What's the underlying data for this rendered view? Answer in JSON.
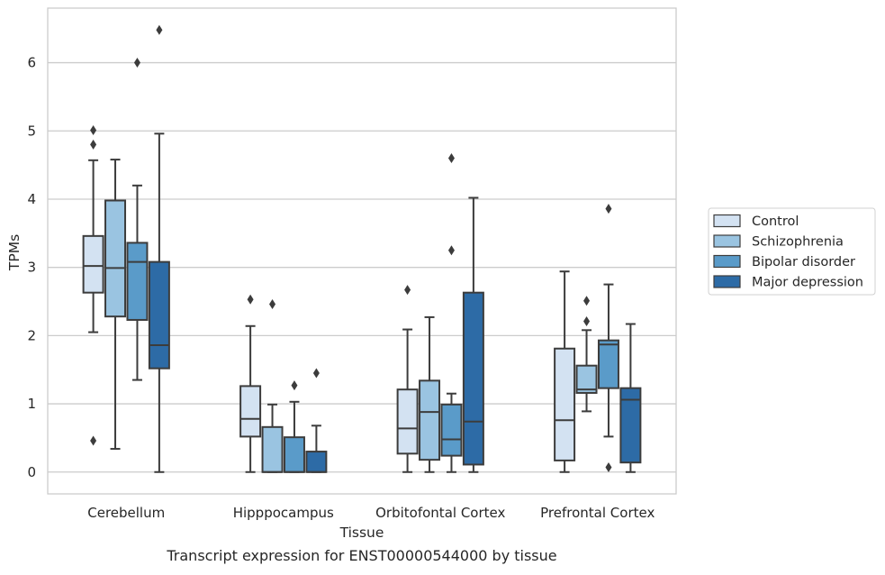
{
  "caption": "Transcript expression for ENST00000544000 by tissue",
  "chart_data": {
    "type": "box",
    "title": "",
    "xlabel": "Tissue",
    "ylabel": "TPMs",
    "ylim": [
      -0.32,
      6.8
    ],
    "yticks": [
      0,
      1,
      2,
      3,
      4,
      5,
      6
    ],
    "ytick_labels": [
      "0",
      "1",
      "2",
      "3",
      "4",
      "5",
      "6"
    ],
    "grid": "horizontal",
    "legend_position": "right",
    "categories": [
      "Cerebellum",
      "Hipppocampus",
      "Orbitofontal Cortex",
      "Prefrontal Cortex"
    ],
    "series": [
      {
        "name": "Control",
        "color": "#d3e2f2",
        "boxes": [
          {
            "whisker_low": 2.05,
            "q1": 2.63,
            "median": 3.02,
            "q3": 3.46,
            "whisker_high": 4.57,
            "outliers": [
              0.46,
              4.8,
              5.01
            ]
          },
          {
            "whisker_low": 0.0,
            "q1": 0.52,
            "median": 0.78,
            "q3": 1.26,
            "whisker_high": 2.14,
            "outliers": [
              2.53
            ]
          },
          {
            "whisker_low": 0.0,
            "q1": 0.27,
            "median": 0.64,
            "q3": 1.21,
            "whisker_high": 2.09,
            "outliers": [
              2.67
            ]
          },
          {
            "whisker_low": 0.0,
            "q1": 0.17,
            "median": 0.76,
            "q3": 1.81,
            "whisker_high": 2.94,
            "outliers": []
          }
        ]
      },
      {
        "name": "Schizophrenia",
        "color": "#9ac4e1",
        "boxes": [
          {
            "whisker_low": 0.34,
            "q1": 2.28,
            "median": 2.99,
            "q3": 3.98,
            "whisker_high": 4.58,
            "outliers": []
          },
          {
            "whisker_low": 0.0,
            "q1": 0.0,
            "median": 0.0,
            "q3": 0.66,
            "whisker_high": 0.99,
            "outliers": [
              2.46
            ]
          },
          {
            "whisker_low": 0.0,
            "q1": 0.18,
            "median": 0.88,
            "q3": 1.34,
            "whisker_high": 2.27,
            "outliers": []
          },
          {
            "whisker_low": 0.89,
            "q1": 1.16,
            "median": 1.21,
            "q3": 1.56,
            "whisker_high": 2.08,
            "outliers": [
              2.21,
              2.51
            ]
          }
        ]
      },
      {
        "name": "Bipolar disorder",
        "color": "#5a9bc9",
        "boxes": [
          {
            "whisker_low": 1.35,
            "q1": 2.23,
            "median": 3.08,
            "q3": 3.36,
            "whisker_high": 4.2,
            "outliers": [
              6.0
            ]
          },
          {
            "whisker_low": 0.0,
            "q1": 0.0,
            "median": 0.0,
            "q3": 0.51,
            "whisker_high": 1.03,
            "outliers": [
              1.27
            ]
          },
          {
            "whisker_low": 0.0,
            "q1": 0.24,
            "median": 0.48,
            "q3": 0.99,
            "whisker_high": 1.15,
            "outliers": [
              3.25,
              4.6
            ]
          },
          {
            "whisker_low": 0.52,
            "q1": 1.23,
            "median": 1.87,
            "q3": 1.93,
            "whisker_high": 2.75,
            "outliers": [
              0.07,
              3.86
            ]
          }
        ]
      },
      {
        "name": "Major depression",
        "color": "#2d6ba6",
        "boxes": [
          {
            "whisker_low": 0.0,
            "q1": 1.52,
            "median": 1.86,
            "q3": 3.08,
            "whisker_high": 4.96,
            "outliers": [
              6.48
            ]
          },
          {
            "whisker_low": 0.0,
            "q1": 0.0,
            "median": 0.0,
            "q3": 0.3,
            "whisker_high": 0.68,
            "outliers": [
              1.45
            ]
          },
          {
            "whisker_low": 0.0,
            "q1": 0.11,
            "median": 0.74,
            "q3": 2.63,
            "whisker_high": 4.02,
            "outliers": []
          },
          {
            "whisker_low": 0.0,
            "q1": 0.14,
            "median": 1.06,
            "q3": 1.23,
            "whisker_high": 2.17,
            "outliers": []
          }
        ]
      }
    ]
  }
}
